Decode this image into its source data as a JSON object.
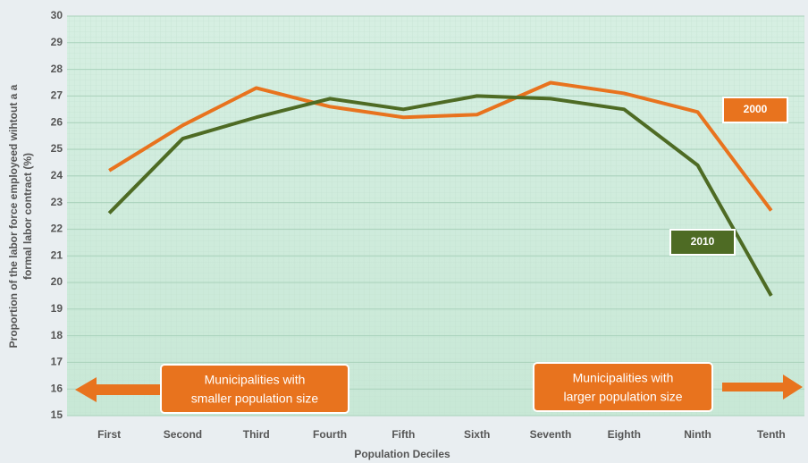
{
  "chart_data": {
    "type": "line",
    "x_label": "Population Deciles",
    "y_label": [
      "Proportion of the labor force employeed wihtout a a",
      "formal labor contract (%)"
    ],
    "categories": [
      "First",
      "Second",
      "Third",
      "Fourth",
      "Fifth",
      "Sixth",
      "Seventh",
      "Eighth",
      "Ninth",
      "Tenth"
    ],
    "series": [
      {
        "name": "2000",
        "color": "#e8731e",
        "values": [
          24.2,
          25.9,
          27.3,
          26.6,
          26.2,
          26.3,
          27.5,
          27.1,
          26.4,
          22.7
        ]
      },
      {
        "name": "2010",
        "color": "#4e6b24",
        "values": [
          22.6,
          25.4,
          26.2,
          26.9,
          26.5,
          27.0,
          26.9,
          26.5,
          24.4,
          19.5
        ]
      }
    ],
    "annotations": [
      [
        "Municipalities with",
        "smaller  population size"
      ],
      [
        "Municipalities with",
        "larger population size"
      ]
    ],
    "ylim": [
      15,
      30
    ],
    "yticks": [
      15,
      16,
      17,
      18,
      19,
      20,
      21,
      22,
      23,
      24,
      25,
      26,
      27,
      28,
      29,
      30
    ],
    "grid": true
  }
}
